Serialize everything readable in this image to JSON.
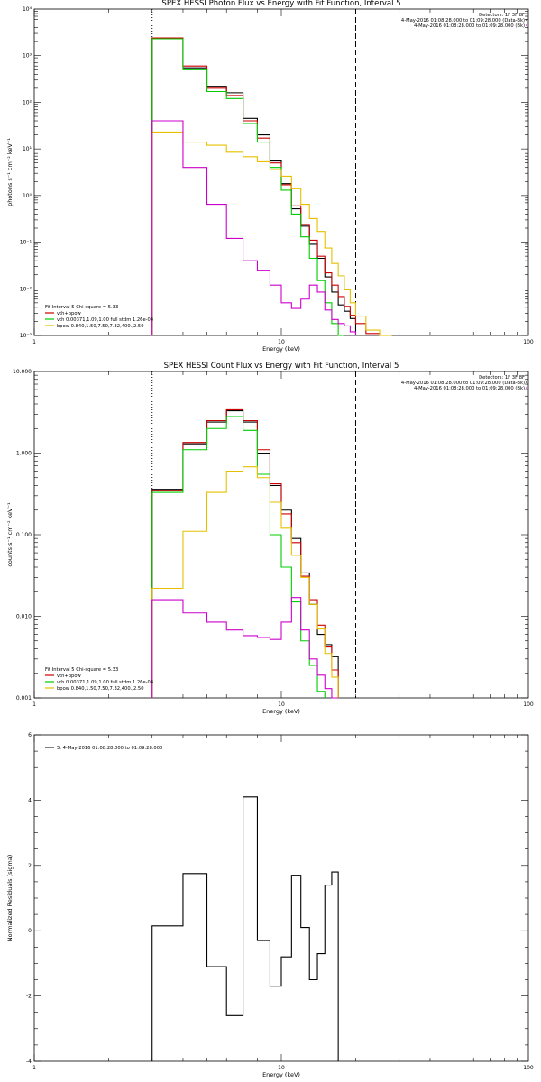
{
  "colors": {
    "data": "#000000",
    "total": "#cc0000",
    "vth": "#00cc00",
    "bpow": "#e6c000",
    "bk": "#cc00cc"
  },
  "chart_data": [
    {
      "type": "line",
      "title": "SPEX HESSI Photon Flux vs Energy with Fit Function, Interval 5",
      "xlabel": "Energy (keV)",
      "ylabel": "photons s⁻¹ cm⁻² keV⁻¹",
      "xscale": "log",
      "yscale": "log",
      "xlim": [
        1,
        100
      ],
      "ylim": [
        0.001,
        10000
      ],
      "xticks": [
        {
          "v": 1,
          "t": "1"
        },
        {
          "v": 10,
          "t": "10"
        },
        {
          "v": 100,
          "t": "100"
        }
      ],
      "yticks": [
        {
          "v": 0.001,
          "t": "10⁻³"
        },
        {
          "v": 0.01,
          "t": "10⁻²"
        },
        {
          "v": 0.1,
          "t": "10⁻¹"
        },
        {
          "v": 1,
          "t": "10⁰"
        },
        {
          "v": 10,
          "t": "10¹"
        },
        {
          "v": 100,
          "t": "10²"
        },
        {
          "v": 1000,
          "t": "10³"
        },
        {
          "v": 10000,
          "t": "10⁴"
        }
      ],
      "vlines": [
        {
          "x": 3,
          "style": "dotted"
        },
        {
          "x": 20,
          "style": "dashed"
        }
      ],
      "header": [
        "Detectors: 1F 3F 8F",
        "4-May-2016 01:08:28.000 to 01:09:28.000 (Data-Bk)",
        "4-May-2016 01:08:28.000 to 01:09:28.000 (Bk)"
      ],
      "fit_note": "Fit Interval 5   Chi-square = 5.33",
      "legend": [
        {
          "label": "vth+bpow",
          "color": "#cc0000"
        },
        {
          "label": "vth 0.00371,1.09,1.00  full stdm 1.26e-04",
          "color": "#00cc00"
        },
        {
          "label": "bpow 0.840,1.50,7.50,7.32,400.,2.50",
          "color": "#e6c000"
        }
      ],
      "edges": [
        3,
        4,
        5,
        6,
        7,
        8,
        9,
        10,
        11,
        12,
        13,
        14,
        15,
        16,
        17,
        18,
        19,
        20,
        22,
        25,
        28
      ],
      "series": [
        {
          "name": "data",
          "color": "#000000",
          "values": [
            2400,
            550,
            220,
            160,
            45,
            20,
            5.5,
            1.8,
            0.52,
            0.22,
            0.09,
            0.045,
            0.018,
            0.0085,
            0.0045,
            0.0033,
            0.0023
          ]
        },
        {
          "name": "vth+bpow",
          "color": "#cc0000",
          "values": [
            2400,
            600,
            200,
            140,
            40,
            17,
            5.0,
            1.7,
            0.6,
            0.24,
            0.11,
            0.05,
            0.022,
            0.012,
            0.0068,
            0.0042,
            0.0027,
            0.0018,
            0.0011,
            0.00075
          ]
        },
        {
          "name": "vth",
          "color": "#00cc00",
          "values": [
            2300,
            500,
            170,
            120,
            35,
            14,
            4.0,
            1.3,
            0.4,
            0.13,
            0.045,
            0.015,
            0.005,
            0.0018,
            0.0006
          ]
        },
        {
          "name": "bpow",
          "color": "#e6c000",
          "values": [
            23,
            14,
            12,
            8.5,
            6.8,
            5.3,
            3.6,
            2.6,
            1.4,
            0.65,
            0.32,
            0.17,
            0.075,
            0.035,
            0.019,
            0.0095,
            0.005,
            0.0026,
            0.0013,
            0.0008
          ]
        },
        {
          "name": "bk",
          "color": "#cc00cc",
          "values": [
            40,
            4.0,
            0.65,
            0.12,
            0.04,
            0.025,
            0.012,
            0.005,
            0.0038,
            0.006,
            0.012,
            0.0085,
            0.0035,
            0.0022,
            0.0018,
            0.0016,
            0.0012
          ]
        }
      ]
    },
    {
      "type": "line",
      "title": "SPEX HESSI Count Flux vs Energy with Fit Function, Interval 5",
      "xlabel": "Energy (keV)",
      "ylabel": "counts s⁻¹ cm⁻² keV⁻¹",
      "xscale": "log",
      "yscale": "log",
      "xlim": [
        1,
        100
      ],
      "ylim": [
        0.001,
        10
      ],
      "xticks": [
        {
          "v": 1,
          "t": "1"
        },
        {
          "v": 10,
          "t": "10"
        },
        {
          "v": 100,
          "t": "100"
        }
      ],
      "yticks": [
        {
          "v": 0.001,
          "t": "0.001"
        },
        {
          "v": 0.01,
          "t": "0.010"
        },
        {
          "v": 0.1,
          "t": "0.100"
        },
        {
          "v": 1,
          "t": "1.000"
        },
        {
          "v": 10,
          "t": "10.000"
        }
      ],
      "vlines": [
        {
          "x": 3,
          "style": "dotted"
        },
        {
          "x": 20,
          "style": "dashed"
        }
      ],
      "header": [
        "Detectors: 1F 3F 8F",
        "4-May-2016 01:08:28.000 to 01:09:28.000 (Data-Bk)",
        "4-May-2016 01:08:28.000 to 01:09:28.000 (Bk)"
      ],
      "fit_note": "Fit Interval 5   Chi-square = 5.33",
      "legend": [
        {
          "label": "vth+bpow",
          "color": "#cc0000"
        },
        {
          "label": "vth 0.00371,1.09,1.00  full stdm 1.26e-04",
          "color": "#00cc00"
        },
        {
          "label": "bpow 0.840,1.50,7.50,7.32,400.,2.50",
          "color": "#e6c000"
        }
      ],
      "edges": [
        3,
        4,
        5,
        6,
        7,
        8,
        9,
        10,
        11,
        12,
        13,
        14,
        15,
        16,
        17,
        18,
        19,
        20
      ],
      "series": [
        {
          "name": "data",
          "color": "#000000",
          "values": [
            0.36,
            1.3,
            2.4,
            3.3,
            2.4,
            1.0,
            0.4,
            0.2,
            0.09,
            0.034,
            0.014,
            0.006,
            0.0045,
            0.0032
          ]
        },
        {
          "name": "vth+bpow",
          "color": "#cc0000",
          "values": [
            0.35,
            1.35,
            2.5,
            3.4,
            2.5,
            1.1,
            0.42,
            0.18,
            0.08,
            0.031,
            0.016,
            0.0078,
            0.0042,
            0.0022
          ]
        },
        {
          "name": "vth",
          "color": "#00cc00",
          "values": [
            0.33,
            1.1,
            2.0,
            2.8,
            1.9,
            0.55,
            0.1,
            0.04,
            0.015,
            0.005,
            0.0025,
            0.0012
          ]
        },
        {
          "name": "bpow",
          "color": "#e6c000",
          "values": [
            0.022,
            0.11,
            0.33,
            0.6,
            0.68,
            0.5,
            0.25,
            0.12,
            0.056,
            0.03,
            0.014,
            0.007,
            0.0035,
            0.0018
          ]
        },
        {
          "name": "bk",
          "color": "#cc00cc",
          "values": [
            0.016,
            0.011,
            0.0085,
            0.0068,
            0.0058,
            0.0055,
            0.0052,
            0.0085,
            0.017,
            0.0068,
            0.003,
            0.0019,
            0.0013,
            0.001
          ]
        }
      ]
    },
    {
      "type": "line",
      "title": "",
      "xlabel": "Energy (keV)",
      "ylabel": "Normalized Residuals (sigma)",
      "xscale": "log",
      "yscale": "linear",
      "xlim": [
        1,
        100
      ],
      "ylim": [
        -4,
        6
      ],
      "xticks": [
        {
          "v": 1,
          "t": "1"
        },
        {
          "v": 10,
          "t": "10"
        },
        {
          "v": 100,
          "t": "100"
        }
      ],
      "yticks": [
        {
          "v": -4,
          "t": "-4"
        },
        {
          "v": -2,
          "t": "-2"
        },
        {
          "v": 0,
          "t": "0"
        },
        {
          "v": 2,
          "t": "2"
        },
        {
          "v": 4,
          "t": "4"
        },
        {
          "v": 6,
          "t": "6"
        }
      ],
      "vlines": [],
      "header": [],
      "fit_note": "",
      "legend": [
        {
          "label": "5,  4-May-2016 01:08:28.000 to 01:09:28.000",
          "color": "#000000"
        }
      ],
      "edges": [
        3,
        4,
        5,
        6,
        7,
        8,
        9,
        10,
        11,
        12,
        13,
        14,
        15,
        16,
        17,
        18,
        19,
        20
      ],
      "series": [
        {
          "name": "residuals",
          "color": "#000000",
          "values": [
            0.15,
            1.75,
            -1.1,
            -2.6,
            4.1,
            -0.3,
            -1.7,
            -0.8,
            1.7,
            0.1,
            -1.5,
            -0.7,
            1.4,
            1.8
          ]
        }
      ]
    }
  ]
}
